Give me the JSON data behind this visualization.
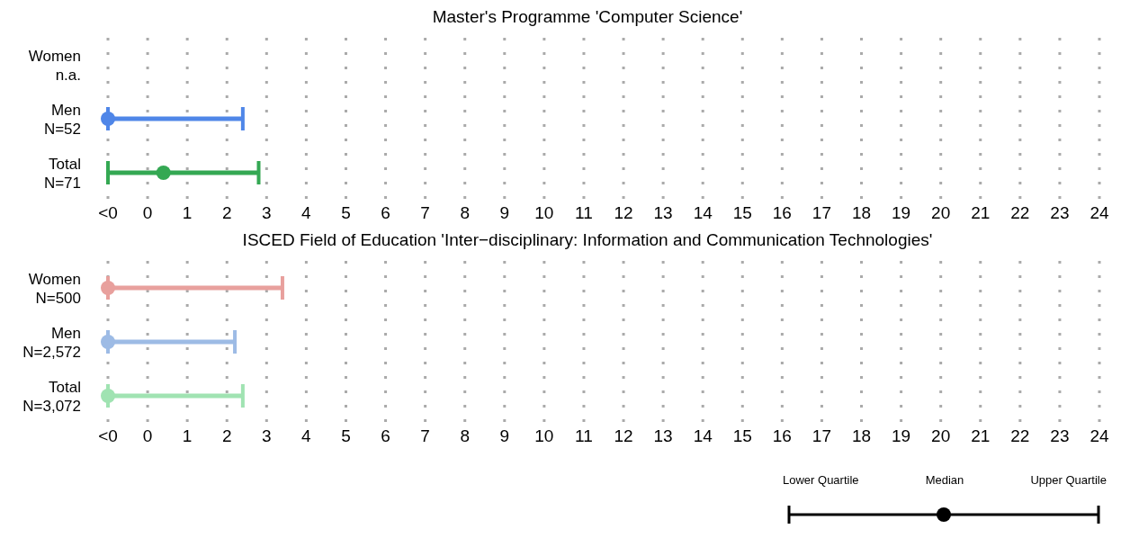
{
  "chart_data": [
    {
      "type": "scatter",
      "orientation": "horizontal",
      "title": "Master's Programme 'Computer Science'",
      "categories": [
        "Women\nn.a.",
        "Men\nN=52",
        "Total\nN=71"
      ],
      "values": [
        null,
        -1,
        0.4
      ],
      "errors": [
        null,
        [
          -1,
          2.4
        ],
        [
          -1,
          2.8
        ]
      ],
      "colors": [
        "#4f86e8",
        "#4f86e8",
        "#34a853"
      ],
      "marker": "circle",
      "xlim": [
        -1,
        24
      ],
      "xticks": [
        {
          "value": -1,
          "label": "<0"
        },
        0,
        1,
        2,
        3,
        4,
        5,
        6,
        7,
        8,
        9,
        10,
        11,
        12,
        13,
        14,
        15,
        16,
        17,
        18,
        19,
        20,
        21,
        22,
        23,
        24
      ],
      "grid": "x"
    },
    {
      "type": "scatter",
      "orientation": "horizontal",
      "title": "ISCED Field of Education 'Inter−disciplinary: Information and Communication Technologies'",
      "categories": [
        "Women\nN=500",
        "Men\nN=2,572",
        "Total\nN=3,072"
      ],
      "values": [
        -1,
        -1,
        -1
      ],
      "errors": [
        [
          -1,
          3.4
        ],
        [
          -1,
          2.2
        ],
        [
          -1,
          2.4
        ]
      ],
      "colors": [
        "#e8a09d",
        "#9dbbe5",
        "#a0e3b2"
      ],
      "marker": "circle",
      "xlim": [
        -1,
        24
      ],
      "xticks": [
        {
          "value": -1,
          "label": "<0"
        },
        0,
        1,
        2,
        3,
        4,
        5,
        6,
        7,
        8,
        9,
        10,
        11,
        12,
        13,
        14,
        15,
        16,
        17,
        18,
        19,
        20,
        21,
        22,
        23,
        24
      ],
      "grid": "x",
      "annotations": [
        "Lower Quartile",
        "Median",
        "Upper Quartile"
      ]
    }
  ]
}
